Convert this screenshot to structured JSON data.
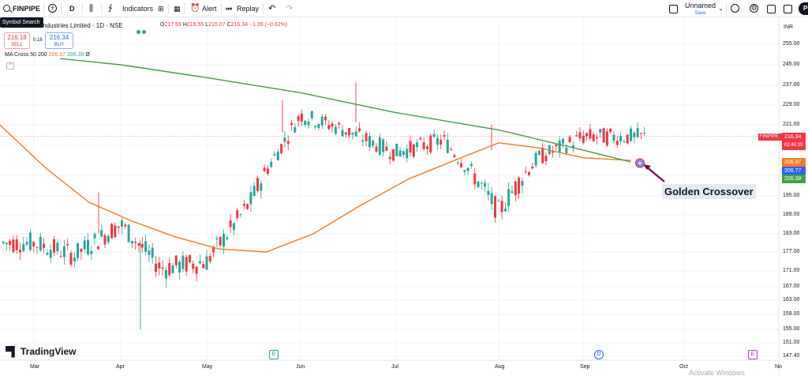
{
  "toolbar": {
    "symbol": "FINPIPE",
    "interval": "D",
    "indicators_label": "Indicators",
    "alert_label": "Alert",
    "replay_label": "Replay",
    "layout_name": "Unnamed",
    "layout_save": "Save",
    "publish_label": "Pu"
  },
  "tooltip": "Symbol Search",
  "legend": {
    "title": "Industries Limited · 1D · NSE",
    "ohlc": {
      "o_label": "O",
      "o": "217.69",
      "h_label": "H",
      "h": "218.55",
      "l_label": "L",
      "l": "215.07",
      "c_label": "C",
      "c": "216.34",
      "chg": "−1.35 (−0.62%)"
    },
    "sell_price": "216.18",
    "sell_label": "SELL",
    "spread": "0.16",
    "buy_price": "216.34",
    "buy_label": "BUY",
    "ma_name": "MA Cross 50 200",
    "ma_fast": "206.97",
    "ma_slow": "206.38",
    "ma_suffix": "Ø"
  },
  "price_axis": {
    "currency": "INR",
    "ticks": [
      "255.00",
      "245.00",
      "237.00",
      "229.00",
      "221.00",
      "213.00",
      "201.00",
      "195.00",
      "189.00",
      "183.00",
      "177.00",
      "171.00",
      "167.00",
      "163.00",
      "159.00",
      "155.00",
      "151.00",
      "147.40"
    ],
    "symbol_tag": "FINPIPE",
    "last_price": "216.34",
    "countdown": "02:46:39",
    "badge_fast": "206.97",
    "badge_mid": "206.77",
    "badge_slow": "206.38"
  },
  "time_axis": {
    "labels": [
      "Mar",
      "Apr",
      "May",
      "Jun",
      "Jul",
      "Aug",
      "Sep",
      "Oct",
      "No"
    ]
  },
  "events": {
    "earnings_1": "E",
    "dividend": "D",
    "earnings_2": "E"
  },
  "branding": "TradingView",
  "annotation": "Golden Crossover",
  "watermark": "Activate Windows",
  "colors": {
    "up": "#26a69a",
    "down": "#f23645",
    "ma_fast": "#f57c1f",
    "ma_slow": "#43a047",
    "accent": "#2962ff",
    "arrow": "#6d1046"
  },
  "chart_data": {
    "type": "candlestick",
    "series": [
      {
        "name": "MA Cross 50 200",
        "kind": "line",
        "role": "ma_fast",
        "x": [
          "Feb-20",
          "Mar-05",
          "Mar-20",
          "Apr-05",
          "Apr-20",
          "May-05",
          "May-20",
          "Jun-05",
          "Jun-20",
          "Jul-05",
          "Jul-20",
          "Aug-01",
          "Aug-15",
          "Sep-01",
          "Sep-15"
        ],
        "values": [
          221,
          204,
          193,
          187,
          182,
          178,
          177,
          183,
          192,
          200,
          208,
          214,
          212,
          208,
          206.97
        ]
      },
      {
        "name": "MA Cross 50 200",
        "kind": "line",
        "role": "ma_slow",
        "x": [
          "Mar-10",
          "Apr-01",
          "May-01",
          "Jun-01",
          "Jul-01",
          "Aug-01",
          "Sep-01",
          "Sep-15"
        ],
        "values": [
          248,
          245,
          240,
          234,
          226,
          219,
          211,
          206.38
        ]
      }
    ],
    "candles_approx": [
      {
        "x": "Mar-01",
        "o": 183,
        "h": 188,
        "l": 174,
        "c": 180
      },
      {
        "x": "Mar-15",
        "o": 178,
        "h": 182,
        "l": 170,
        "c": 176
      },
      {
        "x": "Apr-01",
        "o": 183,
        "h": 196,
        "l": 178,
        "c": 186
      },
      {
        "x": "Apr-15",
        "o": 176,
        "h": 180,
        "l": 155,
        "c": 172
      },
      {
        "x": "May-01",
        "o": 177,
        "h": 181,
        "l": 170,
        "c": 174
      },
      {
        "x": "May-15",
        "o": 178,
        "h": 195,
        "l": 172,
        "c": 193
      },
      {
        "x": "Jun-01",
        "o": 200,
        "h": 231,
        "l": 198,
        "c": 225
      },
      {
        "x": "Jun-15",
        "o": 221,
        "h": 228,
        "l": 215,
        "c": 219
      },
      {
        "x": "Jul-01",
        "o": 216,
        "h": 221,
        "l": 208,
        "c": 210
      },
      {
        "x": "Jul-15",
        "o": 212,
        "h": 218,
        "l": 208,
        "c": 215
      },
      {
        "x": "Aug-01",
        "o": 206,
        "h": 210,
        "l": 186,
        "c": 190
      },
      {
        "x": "Aug-15",
        "o": 195,
        "h": 212,
        "l": 188,
        "c": 208
      },
      {
        "x": "Sep-01",
        "o": 212,
        "h": 222,
        "l": 208,
        "c": 216.34
      }
    ],
    "ylim": [
      147.4,
      258
    ],
    "xlabel": "",
    "ylabel": "INR",
    "grid": true,
    "annotation": {
      "text": "Golden Crossover",
      "x": "Sep-15",
      "y": 206.7
    }
  }
}
